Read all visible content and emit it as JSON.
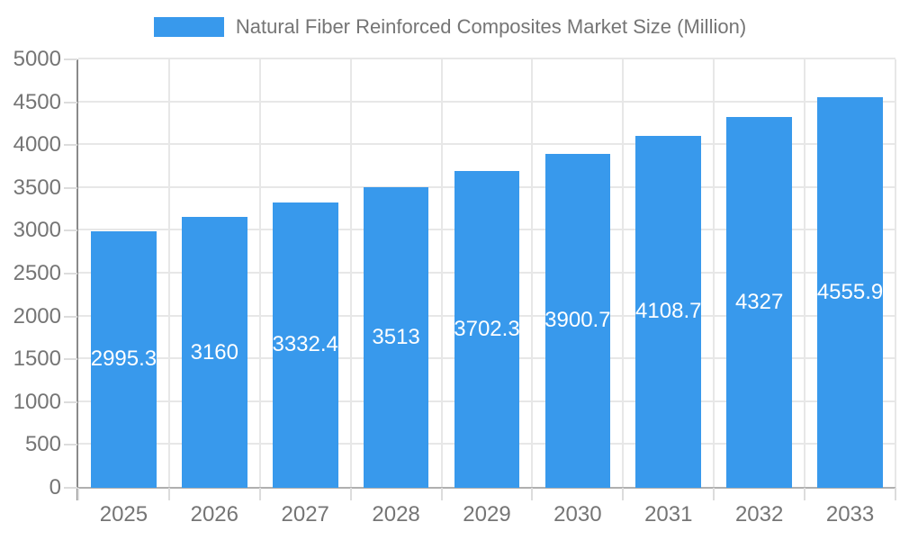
{
  "legend": {
    "position": "top"
  },
  "chart_data": {
    "type": "bar",
    "title": "Natural Fiber Reinforced Composites Market Size (Million)",
    "categories": [
      "2025",
      "2026",
      "2027",
      "2028",
      "2029",
      "2030",
      "2031",
      "2032",
      "2033"
    ],
    "values": [
      2995.3,
      3160,
      3332.4,
      3513,
      3702.3,
      3900.7,
      4108.7,
      4327,
      4555.9
    ],
    "series": [
      {
        "name": "Natural Fiber Reinforced Composites Market Size (Million)",
        "values": [
          2995.3,
          3160,
          3332.4,
          3513,
          3702.3,
          3900.7,
          4108.7,
          4327,
          4555.9
        ]
      }
    ],
    "xlabel": "",
    "ylabel": "",
    "ylim": [
      0,
      5000
    ],
    "ytick_step": 500,
    "yticks": [
      0,
      500,
      1000,
      1500,
      2000,
      2500,
      3000,
      3500,
      4000,
      4500,
      5000
    ],
    "grid": true,
    "legend_position": "top",
    "value_labels": "inside-center"
  },
  "colors": {
    "bar": "#3899ec",
    "value_label": "#ffffff",
    "axis_text": "#757575",
    "gridline": "#e7e7e7",
    "y_axis_line": "#8a8a8a",
    "baseline": "#b0b0b0",
    "tick": "#dcdcdc",
    "background": "#ffffff"
  }
}
